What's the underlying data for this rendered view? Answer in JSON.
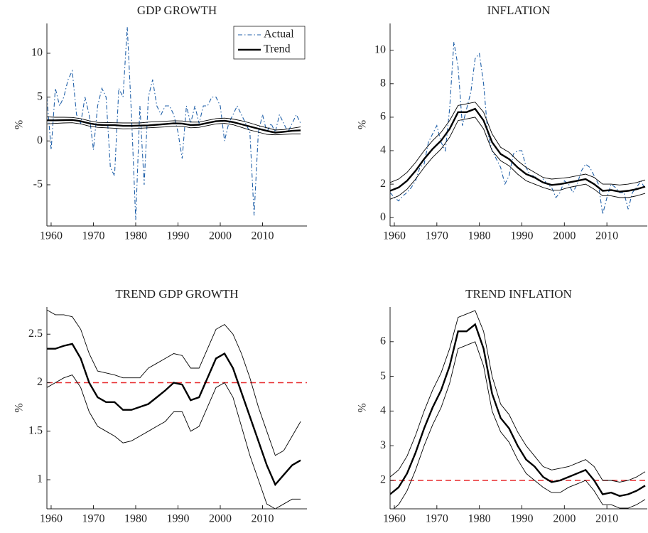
{
  "chart_data": [
    {
      "type": "line",
      "title": "GDP GROWTH",
      "ylabel": "%",
      "xlim": [
        1959,
        2020.5
      ],
      "ylim": [
        -9.7,
        13.4
      ],
      "xticks": [
        1960,
        1970,
        1980,
        1990,
        2000,
        2010
      ],
      "yticks": [
        -5,
        0,
        5,
        10
      ],
      "legend": "northeast",
      "series": [
        {
          "name": "Actual",
          "color": "#1f5fa8",
          "style": "dashdot",
          "x": [
            1959,
            1960,
            1961,
            1962,
            1963,
            1964,
            1965,
            1966,
            1967,
            1968,
            1969,
            1970,
            1971,
            1972,
            1973,
            1974,
            1975,
            1976,
            1977,
            1978,
            1979,
            1980,
            1981,
            1982,
            1983,
            1984,
            1985,
            1986,
            1987,
            1988,
            1989,
            1990,
            1991,
            1992,
            1993,
            1994,
            1995,
            1996,
            1997,
            1998,
            1999,
            2000,
            2001,
            2002,
            2003,
            2004,
            2005,
            2006,
            2007,
            2008,
            2009,
            2010,
            2011,
            2012,
            2013,
            2014,
            2015,
            2016,
            2017,
            2018,
            2019
          ],
          "values": [
            5,
            -1,
            6,
            4,
            5,
            7,
            8,
            3,
            2,
            5,
            3,
            -1,
            4,
            6,
            5,
            -3,
            -4,
            6,
            5,
            13,
            3,
            -9,
            4,
            -5,
            5,
            7,
            4,
            3,
            4,
            4,
            3,
            1,
            -2,
            4,
            2,
            4,
            2,
            4,
            4,
            5,
            5,
            4,
            0,
            2,
            3,
            4,
            3,
            2,
            1,
            -8.5,
            1,
            3,
            1,
            2,
            1,
            3,
            2,
            1,
            2,
            3,
            2
          ]
        },
        {
          "name": "Trend",
          "color": "#000000",
          "style": "solid",
          "x": [
            1959,
            1961,
            1963,
            1965,
            1967,
            1969,
            1971,
            1973,
            1975,
            1977,
            1979,
            1981,
            1983,
            1985,
            1987,
            1989,
            1991,
            1993,
            1995,
            1997,
            1999,
            2001,
            2003,
            2005,
            2007,
            2009,
            2011,
            2013,
            2015,
            2017,
            2019
          ],
          "values": [
            2.35,
            2.35,
            2.38,
            2.4,
            2.25,
            2.0,
            1.85,
            1.8,
            1.8,
            1.72,
            1.72,
            1.75,
            1.78,
            1.85,
            1.92,
            2.0,
            1.98,
            1.82,
            1.85,
            2.05,
            2.25,
            2.3,
            2.15,
            1.9,
            1.65,
            1.4,
            1.15,
            0.95,
            1.05,
            1.15,
            1.2
          ],
          "upper": [
            2.75,
            2.7,
            2.7,
            2.68,
            2.55,
            2.3,
            2.12,
            2.1,
            2.08,
            2.05,
            2.05,
            2.05,
            2.15,
            2.2,
            2.25,
            2.3,
            2.28,
            2.15,
            2.15,
            2.35,
            2.55,
            2.6,
            2.5,
            2.3,
            2.05,
            1.75,
            1.5,
            1.25,
            1.3,
            1.45,
            1.6
          ],
          "lower": [
            1.95,
            2.0,
            2.05,
            2.08,
            1.95,
            1.7,
            1.55,
            1.5,
            1.45,
            1.38,
            1.4,
            1.45,
            1.5,
            1.55,
            1.6,
            1.7,
            1.7,
            1.5,
            1.55,
            1.75,
            1.95,
            2.0,
            1.85,
            1.55,
            1.25,
            1.0,
            0.75,
            0.7,
            0.75,
            0.8,
            0.8
          ]
        }
      ]
    },
    {
      "type": "line",
      "title": "INFLATION",
      "ylabel": "%",
      "xlim": [
        1959,
        2019.5
      ],
      "ylim": [
        -0.5,
        11.6
      ],
      "xticks": [
        1960,
        1970,
        1980,
        1990,
        2000,
        2010
      ],
      "yticks": [
        0,
        2,
        4,
        6,
        8,
        10
      ],
      "series": [
        {
          "name": "Actual",
          "color": "#1f5fa8",
          "style": "dashdot",
          "x": [
            1959,
            1960,
            1961,
            1962,
            1963,
            1964,
            1965,
            1966,
            1967,
            1968,
            1969,
            1970,
            1971,
            1972,
            1973,
            1974,
            1975,
            1976,
            1977,
            1978,
            1979,
            1980,
            1981,
            1982,
            1983,
            1984,
            1985,
            1986,
            1987,
            1988,
            1989,
            1990,
            1991,
            1992,
            1993,
            1994,
            1995,
            1996,
            1997,
            1998,
            1999,
            2000,
            2001,
            2002,
            2003,
            2004,
            2005,
            2006,
            2007,
            2008,
            2009,
            2010,
            2011,
            2012,
            2013,
            2014,
            2015,
            2016,
            2017,
            2018,
            2019
          ],
          "values": [
            1.5,
            1.2,
            1.0,
            1.3,
            1.5,
            1.8,
            2.2,
            3.0,
            3.2,
            4.5,
            5.0,
            5.5,
            4.5,
            4.0,
            6.5,
            10.5,
            9.0,
            5.5,
            6.5,
            7.5,
            9.5,
            9.8,
            8.0,
            5.0,
            4.0,
            3.5,
            3.0,
            2.0,
            2.5,
            3.8,
            4.0,
            4.0,
            3.0,
            2.5,
            2.5,
            2.2,
            2.3,
            2.0,
            1.8,
            1.2,
            1.5,
            2.2,
            2.0,
            1.5,
            2.0,
            2.8,
            3.2,
            3.0,
            2.5,
            2.0,
            0.2,
            1.2,
            2.0,
            1.8,
            1.5,
            1.5,
            0.5,
            1.5,
            1.8,
            2.2,
            1.7
          ]
        },
        {
          "name": "Trend",
          "color": "#000000",
          "style": "solid",
          "x": [
            1959,
            1961,
            1963,
            1965,
            1967,
            1969,
            1971,
            1973,
            1975,
            1977,
            1979,
            1981,
            1983,
            1985,
            1987,
            1989,
            1991,
            1993,
            1995,
            1997,
            1999,
            2001,
            2003,
            2005,
            2007,
            2009,
            2011,
            2013,
            2015,
            2017,
            2019
          ],
          "values": [
            1.6,
            1.8,
            2.2,
            2.8,
            3.5,
            4.1,
            4.6,
            5.3,
            6.3,
            6.3,
            6.5,
            5.8,
            4.5,
            3.8,
            3.5,
            3.0,
            2.6,
            2.4,
            2.1,
            1.95,
            2.0,
            2.1,
            2.2,
            2.3,
            2.0,
            1.6,
            1.65,
            1.55,
            1.6,
            1.7,
            1.85
          ],
          "upper": [
            2.1,
            2.3,
            2.7,
            3.3,
            4.0,
            4.6,
            5.1,
            5.8,
            6.7,
            6.8,
            6.9,
            6.3,
            5.0,
            4.2,
            3.9,
            3.4,
            3.0,
            2.7,
            2.4,
            2.3,
            2.35,
            2.4,
            2.5,
            2.6,
            2.4,
            2.0,
            2.0,
            1.95,
            2.0,
            2.1,
            2.25
          ],
          "lower": [
            1.1,
            1.3,
            1.7,
            2.3,
            3.0,
            3.6,
            4.1,
            4.8,
            5.8,
            5.9,
            6.0,
            5.3,
            4.0,
            3.4,
            3.1,
            2.6,
            2.2,
            2.0,
            1.8,
            1.65,
            1.65,
            1.8,
            1.9,
            2.0,
            1.7,
            1.3,
            1.3,
            1.2,
            1.2,
            1.3,
            1.45
          ]
        }
      ]
    },
    {
      "type": "line",
      "title": "TREND GDP GROWTH",
      "ylabel": "%",
      "xlim": [
        1959,
        2020.5
      ],
      "ylim": [
        0.7,
        2.78
      ],
      "xticks": [
        1960,
        1970,
        1980,
        1990,
        2000,
        2010
      ],
      "yticks": [
        1,
        1.5,
        2,
        2.5
      ],
      "reference_line": 2,
      "reference_color": "#e8282b",
      "series": [
        {
          "color": "#000000",
          "style": "solid",
          "x": [
            1959,
            1961,
            1963,
            1965,
            1967,
            1969,
            1971,
            1973,
            1975,
            1977,
            1979,
            1981,
            1983,
            1985,
            1987,
            1989,
            1991,
            1993,
            1995,
            1997,
            1999,
            2001,
            2003,
            2005,
            2007,
            2009,
            2011,
            2013,
            2015,
            2017,
            2019
          ],
          "values": [
            2.35,
            2.35,
            2.38,
            2.4,
            2.25,
            2.0,
            1.85,
            1.8,
            1.8,
            1.72,
            1.72,
            1.75,
            1.78,
            1.85,
            1.92,
            2.0,
            1.98,
            1.82,
            1.85,
            2.05,
            2.25,
            2.3,
            2.15,
            1.9,
            1.65,
            1.4,
            1.15,
            0.95,
            1.05,
            1.15,
            1.2
          ],
          "upper": [
            2.75,
            2.7,
            2.7,
            2.68,
            2.55,
            2.3,
            2.12,
            2.1,
            2.08,
            2.05,
            2.05,
            2.05,
            2.15,
            2.2,
            2.25,
            2.3,
            2.28,
            2.15,
            2.15,
            2.35,
            2.55,
            2.6,
            2.5,
            2.3,
            2.05,
            1.75,
            1.5,
            1.25,
            1.3,
            1.45,
            1.6
          ],
          "lower": [
            1.95,
            2.0,
            2.05,
            2.08,
            1.95,
            1.7,
            1.55,
            1.5,
            1.45,
            1.38,
            1.4,
            1.45,
            1.5,
            1.55,
            1.6,
            1.7,
            1.7,
            1.5,
            1.55,
            1.75,
            1.95,
            2.0,
            1.85,
            1.55,
            1.25,
            1.0,
            0.75,
            0.7,
            0.75,
            0.8,
            0.8
          ]
        }
      ]
    },
    {
      "type": "line",
      "title": "TREND INFLATION",
      "ylabel": "%",
      "xlim": [
        1959,
        2019.5
      ],
      "ylim": [
        1.18,
        7.0
      ],
      "xticks": [
        1960,
        1970,
        1980,
        1990,
        2000,
        2010
      ],
      "yticks": [
        2,
        3,
        4,
        5,
        6
      ],
      "reference_line": 2,
      "reference_color": "#e8282b",
      "series": [
        {
          "color": "#000000",
          "style": "solid",
          "x": [
            1959,
            1961,
            1963,
            1965,
            1967,
            1969,
            1971,
            1973,
            1975,
            1977,
            1979,
            1981,
            1983,
            1985,
            1987,
            1989,
            1991,
            1993,
            1995,
            1997,
            1999,
            2001,
            2003,
            2005,
            2007,
            2009,
            2011,
            2013,
            2015,
            2017,
            2019
          ],
          "values": [
            1.6,
            1.8,
            2.2,
            2.8,
            3.5,
            4.1,
            4.6,
            5.3,
            6.3,
            6.3,
            6.5,
            5.8,
            4.5,
            3.8,
            3.5,
            3.0,
            2.6,
            2.4,
            2.1,
            1.95,
            2.0,
            2.1,
            2.2,
            2.3,
            2.0,
            1.6,
            1.65,
            1.55,
            1.6,
            1.7,
            1.85
          ],
          "upper": [
            2.1,
            2.3,
            2.7,
            3.3,
            4.0,
            4.6,
            5.1,
            5.8,
            6.7,
            6.8,
            6.9,
            6.3,
            5.0,
            4.2,
            3.9,
            3.4,
            3.0,
            2.7,
            2.4,
            2.3,
            2.35,
            2.4,
            2.5,
            2.6,
            2.4,
            2.0,
            2.0,
            1.95,
            2.0,
            2.1,
            2.25
          ],
          "lower": [
            1.1,
            1.3,
            1.7,
            2.3,
            3.0,
            3.6,
            4.1,
            4.8,
            5.8,
            5.9,
            6.0,
            5.3,
            4.0,
            3.4,
            3.1,
            2.6,
            2.2,
            2.0,
            1.8,
            1.65,
            1.65,
            1.8,
            1.9,
            2.0,
            1.7,
            1.3,
            1.3,
            1.2,
            1.2,
            1.3,
            1.45
          ]
        }
      ]
    }
  ]
}
